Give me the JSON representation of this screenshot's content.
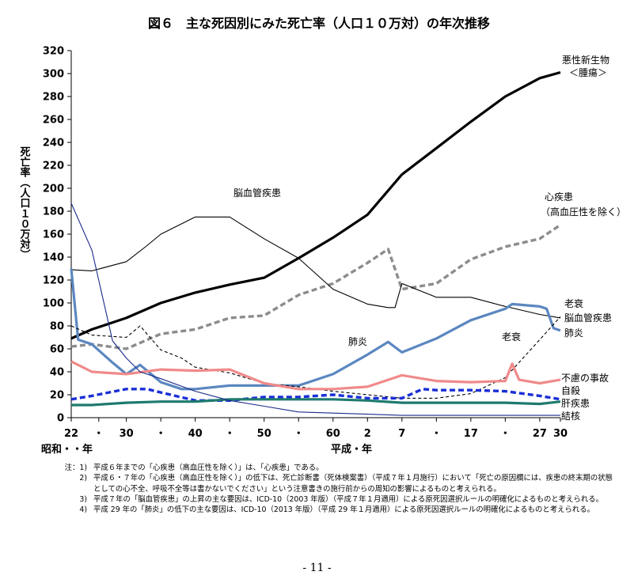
{
  "chart_data": {
    "type": "line",
    "title": "図６　主な死因別にみた死亡率（人口１０万対）の年次推移",
    "ylabel": "死亡率（人口１０万対）",
    "ylim": [
      0,
      320
    ],
    "yticks": [
      0,
      20,
      40,
      60,
      80,
      100,
      120,
      140,
      160,
      180,
      200,
      220,
      240,
      260,
      280,
      300,
      320
    ],
    "xlim": [
      1947,
      2018
    ],
    "xticks": [
      {
        "year": 1947,
        "label": "22"
      },
      {
        "year": 1951,
        "label": "・"
      },
      {
        "year": 1955,
        "label": "30"
      },
      {
        "year": 1960,
        "label": "・"
      },
      {
        "year": 1965,
        "label": "40"
      },
      {
        "year": 1970,
        "label": "・"
      },
      {
        "year": 1975,
        "label": "50"
      },
      {
        "year": 1980,
        "label": "・"
      },
      {
        "year": 1985,
        "label": "60"
      },
      {
        "year": 1990,
        "label": "2"
      },
      {
        "year": 1995,
        "label": "7"
      },
      {
        "year": 2000,
        "label": "・"
      },
      {
        "year": 2005,
        "label": "17"
      },
      {
        "year": 2010,
        "label": "・"
      },
      {
        "year": 2015,
        "label": "27"
      },
      {
        "year": 2018,
        "label": "30"
      }
    ],
    "era_showa": "昭和・・年",
    "era_heisei": "平成・年",
    "grid": false,
    "series": [
      {
        "name": "悪性新生物＜腫瘍＞",
        "color": "#000000",
        "style": "solid-bold",
        "points": [
          [
            1947,
            69
          ],
          [
            1950,
            77
          ],
          [
            1955,
            87
          ],
          [
            1960,
            100
          ],
          [
            1965,
            109
          ],
          [
            1970,
            116
          ],
          [
            1975,
            122
          ],
          [
            1980,
            139
          ],
          [
            1985,
            157
          ],
          [
            1990,
            177
          ],
          [
            1995,
            212
          ],
          [
            2000,
            235
          ],
          [
            2005,
            258
          ],
          [
            2010,
            280
          ],
          [
            2015,
            296
          ],
          [
            2018,
            301
          ]
        ]
      },
      {
        "name": "心疾患（高血圧性を除く）",
        "color": "#8c8c8c",
        "style": "dashed-bold",
        "points": [
          [
            1947,
            62
          ],
          [
            1950,
            64
          ],
          [
            1955,
            60
          ],
          [
            1960,
            73
          ],
          [
            1965,
            77
          ],
          [
            1970,
            87
          ],
          [
            1975,
            89
          ],
          [
            1980,
            107
          ],
          [
            1985,
            117
          ],
          [
            1990,
            135
          ],
          [
            1993,
            147
          ],
          [
            1995,
            112
          ],
          [
            2000,
            117
          ],
          [
            2005,
            138
          ],
          [
            2010,
            149
          ],
          [
            2015,
            156
          ],
          [
            2018,
            168
          ]
        ]
      },
      {
        "name": "脳血管疾患",
        "color": "#000000",
        "style": "thin",
        "points": [
          [
            1947,
            129
          ],
          [
            1950,
            128
          ],
          [
            1955,
            136
          ],
          [
            1958,
            150
          ],
          [
            1960,
            160
          ],
          [
            1965,
            175
          ],
          [
            1970,
            175
          ],
          [
            1975,
            156
          ],
          [
            1980,
            139
          ],
          [
            1985,
            112
          ],
          [
            1990,
            99
          ],
          [
            1993,
            96
          ],
          [
            1994,
            96
          ],
          [
            1995,
            117
          ],
          [
            2000,
            105
          ],
          [
            2005,
            105
          ],
          [
            2010,
            97
          ],
          [
            2015,
            90
          ],
          [
            2018,
            87
          ]
        ]
      },
      {
        "name": "肺炎",
        "color": "#5b87c0",
        "style": "solid-bold",
        "points": [
          [
            1947,
            130
          ],
          [
            1948,
            68
          ],
          [
            1950,
            64
          ],
          [
            1953,
            48
          ],
          [
            1955,
            38
          ],
          [
            1957,
            46
          ],
          [
            1960,
            31
          ],
          [
            1963,
            25
          ],
          [
            1965,
            25
          ],
          [
            1970,
            28
          ],
          [
            1975,
            28
          ],
          [
            1980,
            28
          ],
          [
            1985,
            38
          ],
          [
            1990,
            55
          ],
          [
            1993,
            66
          ],
          [
            1995,
            57
          ],
          [
            2000,
            69
          ],
          [
            2005,
            85
          ],
          [
            2010,
            95
          ],
          [
            2011,
            99
          ],
          [
            2015,
            97
          ],
          [
            2016,
            95
          ],
          [
            2017,
            78
          ],
          [
            2018,
            76
          ]
        ]
      },
      {
        "name": "老衰",
        "color": "#000000",
        "style": "dashed-thin",
        "points": [
          [
            1947,
            80
          ],
          [
            1950,
            72
          ],
          [
            1955,
            70
          ],
          [
            1957,
            80
          ],
          [
            1960,
            59
          ],
          [
            1963,
            52
          ],
          [
            1965,
            44
          ],
          [
            1970,
            39
          ],
          [
            1975,
            30
          ],
          [
            1980,
            27
          ],
          [
            1985,
            23
          ],
          [
            1990,
            20
          ],
          [
            1995,
            17
          ],
          [
            2000,
            17
          ],
          [
            2005,
            21
          ],
          [
            2010,
            35
          ],
          [
            2015,
            68
          ],
          [
            2018,
            88
          ]
        ]
      },
      {
        "name": "不慮の事故",
        "color": "#f08a8a",
        "style": "solid-bold",
        "points": [
          [
            1947,
            49
          ],
          [
            1950,
            40
          ],
          [
            1955,
            38
          ],
          [
            1960,
            42
          ],
          [
            1965,
            41
          ],
          [
            1970,
            42
          ],
          [
            1975,
            30
          ],
          [
            1980,
            25
          ],
          [
            1985,
            25
          ],
          [
            1990,
            27
          ],
          [
            1995,
            37
          ],
          [
            2000,
            32
          ],
          [
            2005,
            31
          ],
          [
            2010,
            32
          ],
          [
            2011,
            47
          ],
          [
            2012,
            33
          ],
          [
            2015,
            30
          ],
          [
            2018,
            33
          ]
        ]
      },
      {
        "name": "自殺",
        "color": "#1a2fd6",
        "style": "dashed-bold",
        "points": [
          [
            1947,
            16
          ],
          [
            1950,
            19
          ],
          [
            1955,
            25
          ],
          [
            1958,
            25
          ],
          [
            1960,
            22
          ],
          [
            1965,
            15
          ],
          [
            1970,
            15
          ],
          [
            1975,
            18
          ],
          [
            1980,
            18
          ],
          [
            1985,
            20
          ],
          [
            1990,
            17
          ],
          [
            1995,
            17
          ],
          [
            1998,
            25
          ],
          [
            2000,
            24
          ],
          [
            2005,
            24
          ],
          [
            2010,
            23
          ],
          [
            2015,
            19
          ],
          [
            2018,
            16
          ]
        ]
      },
      {
        "name": "肝疾患",
        "color": "#1f7a6e",
        "style": "solid-bold",
        "points": [
          [
            1947,
            11
          ],
          [
            1950,
            11
          ],
          [
            1955,
            13
          ],
          [
            1960,
            14
          ],
          [
            1965,
            14
          ],
          [
            1970,
            16
          ],
          [
            1975,
            16
          ],
          [
            1980,
            16
          ],
          [
            1985,
            16
          ],
          [
            1990,
            15
          ],
          [
            1995,
            13
          ],
          [
            2000,
            13
          ],
          [
            2005,
            13
          ],
          [
            2010,
            13
          ],
          [
            2015,
            12
          ],
          [
            2018,
            14
          ]
        ]
      },
      {
        "name": "結核",
        "color": "#1a2a8a",
        "style": "thin",
        "points": [
          [
            1947,
            187
          ],
          [
            1950,
            146
          ],
          [
            1953,
            67
          ],
          [
            1955,
            52
          ],
          [
            1957,
            40
          ],
          [
            1960,
            34
          ],
          [
            1965,
            23
          ],
          [
            1970,
            15
          ],
          [
            1975,
            10
          ],
          [
            1980,
            5
          ],
          [
            1985,
            4
          ],
          [
            1990,
            3
          ],
          [
            1995,
            2
          ],
          [
            2000,
            2
          ],
          [
            2005,
            2
          ],
          [
            2010,
            2
          ],
          [
            2015,
            2
          ],
          [
            2018,
            2
          ]
        ]
      }
    ],
    "annotations": {
      "cancer": "悪性新生物",
      "cancer2": "＜腫瘍＞",
      "heart": "心疾患",
      "heart2": "（高血圧性を除く）",
      "cerebro": "脳血管疾患",
      "pneumonia_in": "肺炎",
      "senility_in": "老衰",
      "right_senility": "老衰",
      "right_cerebro": "脳血管疾患",
      "right_pneumonia": "肺炎",
      "accident": "不慮の事故",
      "suicide": "自殺",
      "liver": "肝疾患",
      "tb": "結核"
    }
  },
  "notes": [
    {
      "num": "注：1)",
      "text": "平成６年までの「心疾患（高血圧性を除く）」は、「心疾患」である。"
    },
    {
      "num": "2)",
      "text": "平成６・７年の「心疾患（高血圧性を除く）」の低下は、死亡診断書（死体検案書）（平成７年１月施行）において「死亡の原因欄には、疾患の終末期の状態としての心不全、呼吸不全等は書かないでください」という注意書きの施行前からの周知の影響によるものと考えられる。"
    },
    {
      "num": "3)",
      "text": "平成７年の「脳血管疾患」の上昇の主な要因は、ICD-10（2003 年版）（平成７年１月適用）による原死因選択ルールの明確化によるものと考えられる。"
    },
    {
      "num": "4)",
      "text": "平成 29 年の「肺炎」の低下の主な要因は、ICD-10（2013 年版）（平成 29 年１月適用）による原死因選択ルールの明確化によるものと考えられる。"
    }
  ],
  "page_number": "- 11 -"
}
